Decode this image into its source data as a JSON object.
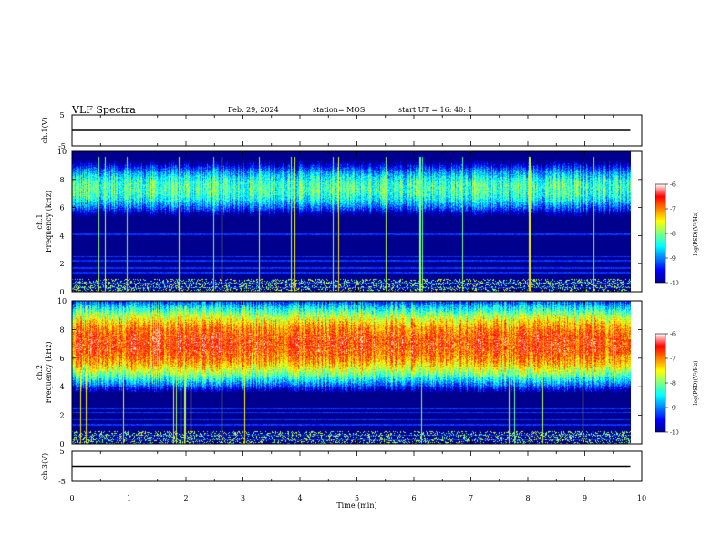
{
  "header": {
    "title": "VLF Spectra",
    "date": "Feb. 29, 2024",
    "station": "station= MOS",
    "start_ut": "start  UT =   16: 40: 1"
  },
  "colors": {
    "axis": "#000000",
    "spectrogram_bg": "#000033",
    "colormap": [
      "#00008f",
      "#0000ff",
      "#0080ff",
      "#00ffff",
      "#80ff80",
      "#ffff00",
      "#ff8000",
      "#ff0000",
      "#ffffff"
    ]
  },
  "chart_data": [
    {
      "type": "line",
      "name": "ch1-voltage",
      "ylabel": "ch.1(V)",
      "ylim": [
        -5,
        5
      ],
      "yticks": [
        "5",
        "-5"
      ],
      "x": [
        0,
        9.8
      ],
      "y": [
        0,
        0
      ]
    },
    {
      "type": "heatmap",
      "name": "ch1-spectrogram",
      "ylabel": "ch.1 Frequency (kHz)",
      "ylim": [
        0,
        10
      ],
      "yticks": [
        "0",
        "2",
        "4",
        "6",
        "8",
        "10"
      ],
      "xlim": [
        0,
        10
      ],
      "data_end_min": 9.8,
      "colorbar": {
        "label": "log(PSD)(V²/Hz)",
        "range": [
          -10,
          -6
        ],
        "ticks": [
          "-6",
          "-7",
          "-8",
          "-9",
          "-10"
        ]
      },
      "band_kHz": [
        5.5,
        9.2
      ],
      "band_peak_log_psd": -8.2
    },
    {
      "type": "heatmap",
      "name": "ch2-spectrogram",
      "ylabel": "ch.2 Frequency (kHz)",
      "ylim": [
        0,
        10
      ],
      "yticks": [
        "0",
        "2",
        "4",
        "6",
        "8",
        "10"
      ],
      "xlim": [
        0,
        10
      ],
      "data_end_min": 9.8,
      "colorbar": {
        "label": "log(PSD)(V²/Hz)",
        "range": [
          -10,
          -6
        ],
        "ticks": [
          "-6",
          "-7",
          "-8",
          "-9",
          "-10"
        ]
      },
      "band_kHz": [
        4.5,
        9.5
      ],
      "band_peak_log_psd": -6.7
    },
    {
      "type": "line",
      "name": "ch3-voltage",
      "ylabel": "ch.3(V)",
      "ylim": [
        -5,
        5
      ],
      "yticks": [
        "5",
        "-5"
      ],
      "x": [
        0,
        9.8
      ],
      "y": [
        0,
        0
      ]
    }
  ],
  "xaxis": {
    "label": "Time (min)",
    "ticks": [
      "0",
      "1",
      "2",
      "3",
      "4",
      "5",
      "6",
      "7",
      "8",
      "9",
      "10"
    ]
  }
}
